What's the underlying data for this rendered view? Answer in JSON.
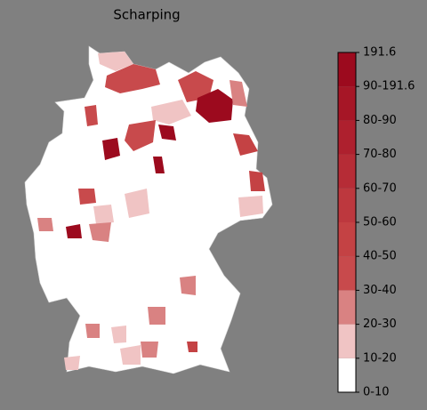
{
  "title": "Scharping",
  "colorbar": {
    "labels": [
      "0-10",
      "10-20",
      "20-30",
      "30-40",
      "40-50",
      "50-60",
      "60-70",
      "70-80",
      "80-90",
      "90-191.6",
      "191.6"
    ],
    "colors": [
      "#ffffff",
      "#f0c4c4",
      "#d98282",
      "#c84a4c",
      "#c44244",
      "#bd383e",
      "#b62c36",
      "#ae202e",
      "#a61626",
      "#9c0a1e"
    ]
  }
}
